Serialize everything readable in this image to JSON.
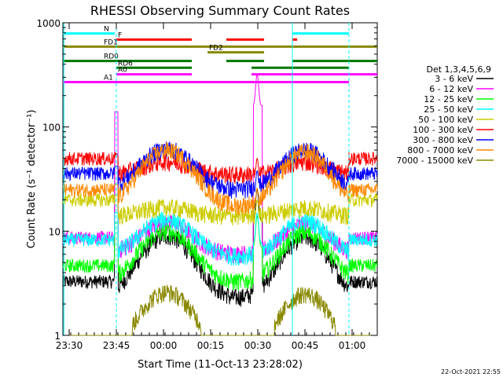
{
  "chart_data": {
    "type": "line",
    "title": "RHESSI Observing Summary Count Rates",
    "xlabel": "Start Time (11-Oct-13 23:28:02)",
    "ylabel": "Count Rate (s⁻¹ detector⁻¹)",
    "yscale": "log",
    "ylim": [
      1,
      1000
    ],
    "xlim_minutes": [
      0,
      100
    ],
    "x_ticks": [
      {
        "m": 2,
        "label": "23:30"
      },
      {
        "m": 17,
        "label": "23:45"
      },
      {
        "m": 32,
        "label": "00:00"
      },
      {
        "m": 47,
        "label": "00:15"
      },
      {
        "m": 62,
        "label": "00:30"
      },
      {
        "m": 77,
        "label": "00:45"
      },
      {
        "m": 92,
        "label": "01:00"
      }
    ],
    "y_ticks": [
      {
        "v": 1,
        "label": "1"
      },
      {
        "v": 10,
        "label": "10"
      },
      {
        "v": 100,
        "label": "100"
      },
      {
        "v": 1000,
        "label": "1000"
      }
    ],
    "legend_header": "Det 1,3,4,5,6,9",
    "legend_position": "right",
    "series": [
      {
        "name": "3 - 6 keV",
        "color": "#000000",
        "base": 3.3,
        "amp": 9,
        "spike": 55,
        "flare": 25
      },
      {
        "name": "6 - 12 keV",
        "color": "#ff00ff",
        "base": 8.7,
        "amp": 12,
        "spike": 140,
        "flare": 320
      },
      {
        "name": "12 - 25 keV",
        "color": "#00ff00",
        "base": 4.7,
        "amp": 10,
        "spike": 12,
        "flare": 14
      },
      {
        "name": "25 - 50 keV",
        "color": "#00ffff",
        "base": 8.3,
        "amp": 13,
        "spike": 15,
        "flare": 15
      },
      {
        "name": "50 - 100 keV",
        "color": "#cccc00",
        "base": 20,
        "amp": 17,
        "spike": 22,
        "flare": 20
      },
      {
        "name": "100 - 300 keV",
        "color": "#ff0000",
        "base": 50,
        "amp": 47,
        "spike": 52,
        "flare": 50
      },
      {
        "name": "300 - 800 keV",
        "color": "#0000ff",
        "base": 36,
        "amp": 62,
        "spike": 42,
        "flare": 38
      },
      {
        "name": "800 - 7000 keV",
        "color": "#ff8800",
        "base": 25,
        "amp": 60,
        "spike": 28,
        "flare": 26
      },
      {
        "name": "7000 - 15000 keV",
        "color": "#888800",
        "base": 1,
        "amp": 2.6,
        "spike": 1,
        "flare": 1
      }
    ],
    "flag_bars": [
      {
        "label": "N",
        "color": "#00ffff",
        "y": 790,
        "segments": [
          [
            0,
            16.5
          ],
          [
            73,
            91
          ]
        ]
      },
      {
        "label": "F",
        "color": "#ff0000",
        "y": 690,
        "segments": [
          [
            17,
            41
          ],
          [
            52,
            64
          ],
          [
            73,
            74.5
          ]
        ]
      },
      {
        "label": "FD1",
        "color": "#888800",
        "y": 590,
        "segments": [
          [
            0,
            100
          ]
        ]
      },
      {
        "label": "FD2",
        "color": "#888800",
        "y": 520,
        "segments": [
          [
            46,
            64
          ]
        ]
      },
      {
        "label": "RD0",
        "color": "#007700",
        "y": 430,
        "segments": [
          [
            0,
            41
          ],
          [
            52,
            64
          ],
          [
            73,
            100
          ]
        ]
      },
      {
        "label": "RD6",
        "color": "#007700",
        "y": 370,
        "segments": [
          [
            17,
            41
          ],
          [
            60,
            91
          ]
        ]
      },
      {
        "label": "A0",
        "color": "#ff00ff",
        "y": 320,
        "segments": [
          [
            17,
            41
          ],
          [
            60,
            100
          ]
        ]
      },
      {
        "label": "A1",
        "color": "#ff00ff",
        "y": 270,
        "segments": [
          [
            0,
            91
          ]
        ]
      }
    ],
    "night_boundaries": [
      17,
      91
    ],
    "saa_marker": 73,
    "timestamp": "22-Oct-2021 22:55"
  }
}
